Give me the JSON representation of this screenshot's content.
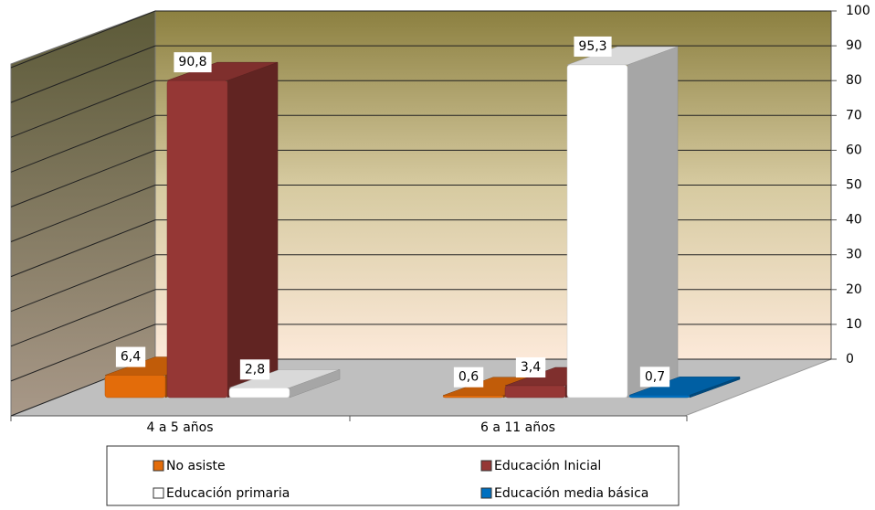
{
  "chart_data": {
    "type": "bar3d",
    "categories": [
      "4 a 5 años",
      "6 a 11 años"
    ],
    "series": [
      {
        "name": "No asiste",
        "color": "#e36c0a",
        "values": [
          6.4,
          0.6
        ],
        "value_labels": [
          "6,4",
          "0,6"
        ]
      },
      {
        "name": "Educación Inicial",
        "color": "#953735",
        "values": [
          90.8,
          3.4
        ],
        "value_labels": [
          "90,8",
          "3,4"
        ]
      },
      {
        "name": "Educación primaria",
        "color": "#ffffff",
        "values": [
          2.8,
          95.3
        ],
        "value_labels": [
          "2,8",
          "95,3"
        ]
      },
      {
        "name": "Educación media básica",
        "color": "#0070c0",
        "values": [
          null,
          0.7
        ],
        "value_labels": [
          null,
          "0,7"
        ]
      }
    ],
    "ylim": [
      0,
      100
    ],
    "yticks": [
      0,
      10,
      20,
      30,
      40,
      50,
      60,
      70,
      80,
      90,
      100
    ],
    "grid": true,
    "legend": "bottom"
  }
}
